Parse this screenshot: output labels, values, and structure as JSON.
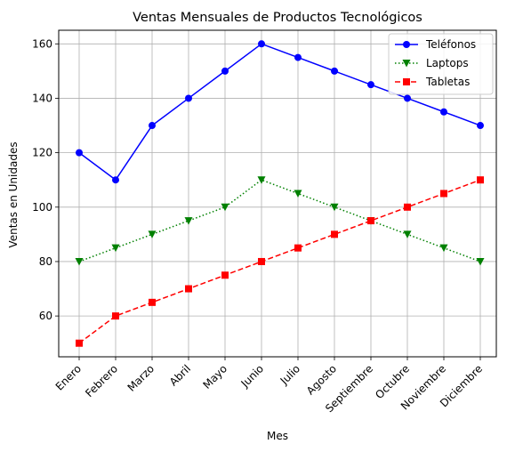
{
  "chart_data": {
    "type": "line",
    "title": "Ventas Mensuales de Productos Tecnológicos",
    "xlabel": "Mes",
    "ylabel": "Ventas en Unidades",
    "categories": [
      "Enero",
      "Febrero",
      "Marzo",
      "Abril",
      "Mayo",
      "Junio",
      "Julio",
      "Agosto",
      "Septiembre",
      "Octubre",
      "Noviembre",
      "Diciembre"
    ],
    "ylim": [
      45,
      165
    ],
    "yticks": [
      60,
      80,
      100,
      120,
      140,
      160
    ],
    "grid": true,
    "legend_position": "top-right",
    "series": [
      {
        "name": "Teléfonos",
        "color": "#0000ff",
        "marker": "circle",
        "line_style": "solid",
        "values": [
          120,
          110,
          130,
          140,
          150,
          160,
          155,
          150,
          145,
          140,
          135,
          130
        ]
      },
      {
        "name": "Laptops",
        "color": "#008000",
        "marker": "triangle-down",
        "line_style": "dotted",
        "values": [
          80,
          85,
          90,
          95,
          100,
          110,
          105,
          100,
          95,
          90,
          85,
          80
        ]
      },
      {
        "name": "Tabletas",
        "color": "#ff0000",
        "marker": "square",
        "line_style": "dashed",
        "values": [
          50,
          60,
          65,
          70,
          75,
          80,
          85,
          90,
          95,
          100,
          105,
          110
        ]
      }
    ]
  }
}
